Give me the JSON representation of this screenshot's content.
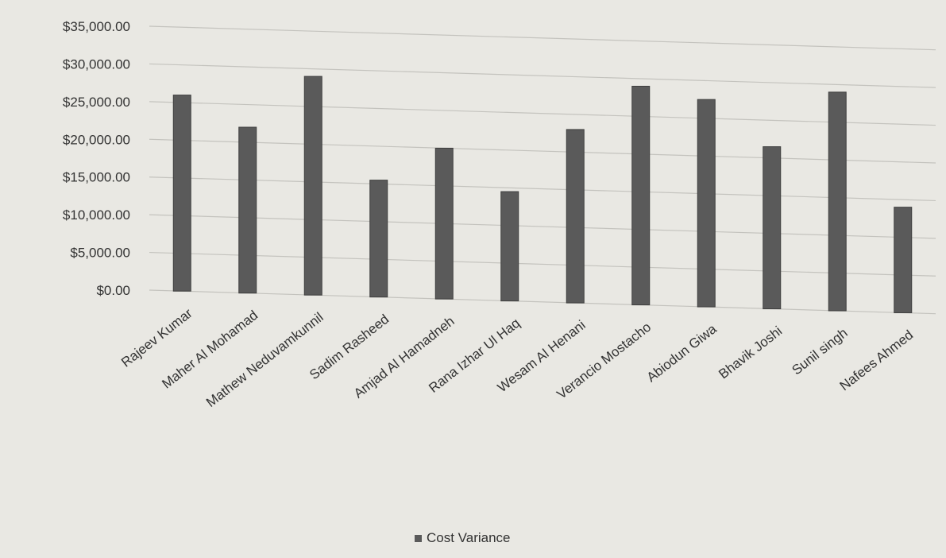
{
  "chart_data": {
    "type": "bar",
    "categories": [
      "Rajeev Kumar",
      "Maher Al Mohamad",
      "Mathew Neduvamkunnil",
      "Sadim Rasheed",
      "Amjad Al Hamadneh",
      "Rana Izhar Ul Haq",
      "Wesam Al Henani",
      "Verancio Mostacho",
      "Abiodun Giwa",
      "Bhavik Joshi",
      "Sunil singh",
      "Nafees Ahmed"
    ],
    "series": [
      {
        "name": "Cost Variance",
        "values": [
          26000,
          22000,
          29000,
          15500,
          20000,
          14500,
          23000,
          29000,
          27500,
          21500,
          29000,
          14000
        ],
        "color": "#5a5a5a"
      }
    ],
    "yticks": [
      "$0.00",
      "$5,000.00",
      "$10,000.00",
      "$15,000.00",
      "$20,000.00",
      "$25,000.00",
      "$30,000.00",
      "$35,000.00"
    ],
    "ylim": [
      0,
      35000
    ],
    "grid": true,
    "legend_position": "bottom-center",
    "title": "",
    "xlabel": "",
    "ylabel": ""
  }
}
